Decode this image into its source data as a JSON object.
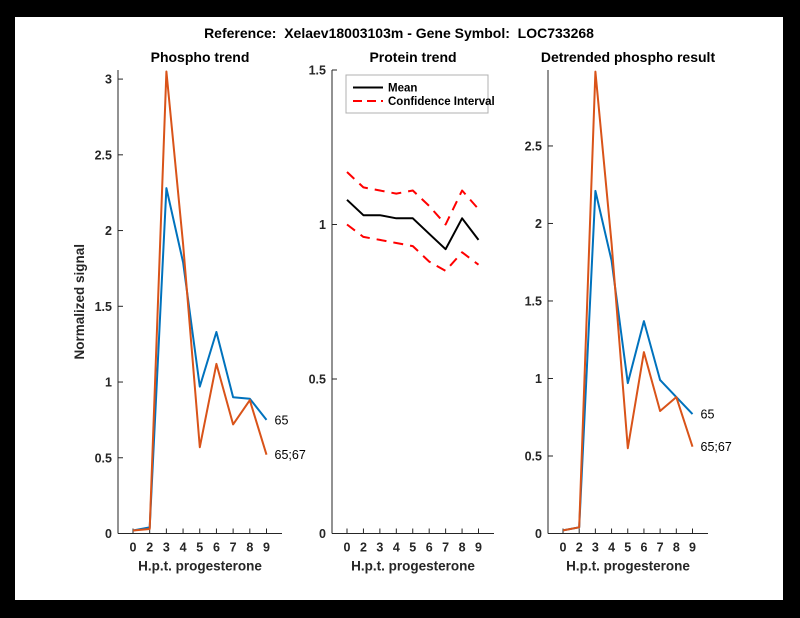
{
  "figure_title": "Reference:  Xelaev18003103m - Gene Symbol:  LOC733268",
  "colors": {
    "frame": "#000000",
    "background": "#FFFFFF",
    "axis": "#262626",
    "blue": "#0072BD",
    "orange": "#D95319",
    "red": "#FF0000",
    "black": "#000000",
    "legend_border": "#B0B0B0"
  },
  "xlabel": "H.p.t. progesterone",
  "categories": [
    "0",
    "2",
    "3",
    "4",
    "5",
    "6",
    "7",
    "8",
    "9"
  ],
  "chart_data": [
    {
      "type": "line",
      "title": "Phospho trend",
      "xlabel": "H.p.t. progesterone",
      "ylabel": "Normalized signal",
      "categories": [
        "0",
        "2",
        "3",
        "4",
        "5",
        "6",
        "7",
        "8",
        "9"
      ],
      "ylim": [
        0,
        3.06
      ],
      "yticks": [
        0,
        0.5,
        1,
        1.5,
        2,
        2.5,
        3
      ],
      "grid": false,
      "series": [
        {
          "name": "65",
          "color": "#0072BD",
          "style": "solid",
          "values": [
            0.02,
            0.04,
            2.28,
            1.79,
            0.97,
            1.33,
            0.9,
            0.89,
            0.75
          ],
          "end_label": "65"
        },
        {
          "name": "65;67",
          "color": "#D95319",
          "style": "solid",
          "values": [
            0.02,
            0.03,
            3.05,
            1.91,
            0.57,
            1.12,
            0.72,
            0.88,
            0.52
          ],
          "end_label": "65;67"
        }
      ]
    },
    {
      "type": "line",
      "title": "Protein trend",
      "xlabel": "H.p.t. progesterone",
      "ylabel": "",
      "categories": [
        "0",
        "2",
        "3",
        "4",
        "5",
        "6",
        "7",
        "8",
        "9"
      ],
      "ylim": [
        0,
        1.5
      ],
      "yticks": [
        0,
        0.5,
        1,
        1.5
      ],
      "grid": false,
      "legend": {
        "position": "northwest",
        "entries": [
          {
            "label": "Mean",
            "color": "#000000",
            "style": "solid"
          },
          {
            "label": "Confidence Interval",
            "color": "#FF0000",
            "style": "dashed"
          }
        ]
      },
      "series": [
        {
          "name": "Mean",
          "color": "#000000",
          "style": "solid",
          "values": [
            1.08,
            1.03,
            1.03,
            1.02,
            1.02,
            0.97,
            0.92,
            1.02,
            0.95
          ]
        },
        {
          "name": "Confidence Interval upper",
          "color": "#FF0000",
          "style": "dashed",
          "values": [
            1.17,
            1.12,
            1.11,
            1.1,
            1.11,
            1.06,
            1.0,
            1.11,
            1.05
          ]
        },
        {
          "name": "Confidence Interval lower",
          "color": "#FF0000",
          "style": "dashed",
          "values": [
            1.0,
            0.96,
            0.95,
            0.94,
            0.93,
            0.88,
            0.85,
            0.91,
            0.87
          ]
        }
      ]
    },
    {
      "type": "line",
      "title": "Detrended phospho result",
      "xlabel": "H.p.t. progesterone",
      "ylabel": "",
      "categories": [
        "0",
        "2",
        "3",
        "4",
        "5",
        "6",
        "7",
        "8",
        "9"
      ],
      "ylim": [
        0,
        2.99
      ],
      "yticks": [
        0,
        0.5,
        1,
        1.5,
        2,
        2.5
      ],
      "grid": false,
      "series": [
        {
          "name": "65",
          "color": "#0072BD",
          "style": "solid",
          "values": [
            0.02,
            0.04,
            2.21,
            1.76,
            0.97,
            1.37,
            0.99,
            0.88,
            0.77
          ],
          "end_label": "65"
        },
        {
          "name": "65;67",
          "color": "#D95319",
          "style": "solid",
          "values": [
            0.02,
            0.04,
            2.98,
            1.87,
            0.55,
            1.17,
            0.79,
            0.88,
            0.56
          ],
          "end_label": "65;67"
        }
      ]
    }
  ]
}
